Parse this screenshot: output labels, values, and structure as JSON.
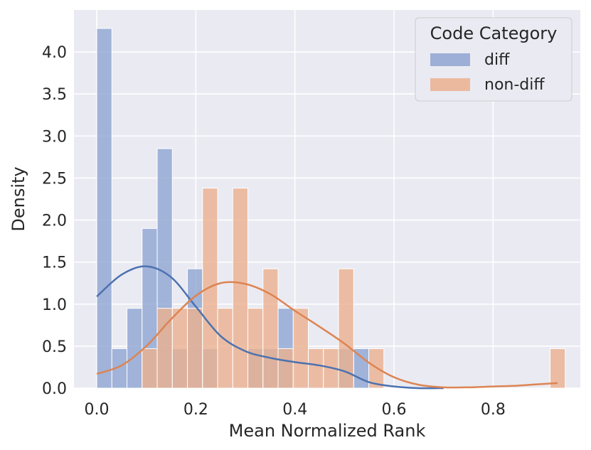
{
  "chart_data": {
    "type": "histogram",
    "title": "",
    "xlabel": "Mean Normalized Rank",
    "ylabel": "Density",
    "xlim": [
      -0.046,
      0.976
    ],
    "ylim": [
      0,
      4.5
    ],
    "x_ticks": [
      {
        "value": 0.0,
        "label": "0.0"
      },
      {
        "value": 0.2,
        "label": "0.2"
      },
      {
        "value": 0.4,
        "label": "0.4"
      },
      {
        "value": 0.6,
        "label": "0.6"
      },
      {
        "value": 0.8,
        "label": "0.8"
      }
    ],
    "y_ticks": [
      {
        "value": 0.0,
        "label": "0.0"
      },
      {
        "value": 0.5,
        "label": "0.5"
      },
      {
        "value": 1.0,
        "label": "1.0"
      },
      {
        "value": 1.5,
        "label": "1.5"
      },
      {
        "value": 2.0,
        "label": "2.0"
      },
      {
        "value": 2.5,
        "label": "2.5"
      },
      {
        "value": 3.0,
        "label": "3.0"
      },
      {
        "value": 3.5,
        "label": "3.5"
      },
      {
        "value": 4.0,
        "label": "4.0"
      }
    ],
    "grid": true,
    "legend": {
      "title": "Code Category",
      "position": "top-right"
    },
    "bin_edges": [
      0.0,
      0.0305,
      0.061,
      0.0915,
      0.122,
      0.1525,
      0.183,
      0.2135,
      0.244,
      0.2745,
      0.305,
      0.3355,
      0.366,
      0.3965,
      0.427,
      0.4575,
      0.488,
      0.5185,
      0.549,
      0.5795,
      0.61,
      0.6405,
      0.671,
      0.7015,
      0.732,
      0.7625,
      0.793,
      0.8235,
      0.854,
      0.8845,
      0.915,
      0.9455
    ],
    "series": [
      {
        "name": "diff",
        "bar_color": "#8fa5d1",
        "line_color": "#4c72b0",
        "densities": [
          4.28,
          0.47,
          0.95,
          1.9,
          2.85,
          0.47,
          1.42,
          0.47,
          0.0,
          0.0,
          0.47,
          0.47,
          0.95,
          0.0,
          0.0,
          0.0,
          0.47,
          0.47,
          0.0,
          0.0,
          0.0,
          0.0,
          0.0,
          0.0,
          0.0,
          0.0,
          0.0,
          0.0,
          0.0,
          0.0,
          0.0
        ],
        "kde_x": [
          0.0,
          0.05,
          0.1,
          0.15,
          0.2,
          0.25,
          0.3,
          0.35,
          0.4,
          0.45,
          0.5,
          0.55,
          0.6,
          0.65,
          0.7
        ],
        "kde_y": [
          1.09,
          1.35,
          1.45,
          1.32,
          0.97,
          0.62,
          0.44,
          0.36,
          0.31,
          0.27,
          0.2,
          0.07,
          0.02,
          0.0,
          0.0
        ]
      },
      {
        "name": "non-diff",
        "bar_color": "#ebb08f",
        "line_color": "#dd8452",
        "densities": [
          0.0,
          0.0,
          0.0,
          0.47,
          0.95,
          0.95,
          0.95,
          2.38,
          0.95,
          2.38,
          0.95,
          1.42,
          0.47,
          0.95,
          0.47,
          0.47,
          1.42,
          0.0,
          0.47,
          0.0,
          0.0,
          0.0,
          0.0,
          0.0,
          0.0,
          0.0,
          0.0,
          0.0,
          0.0,
          0.0,
          0.47
        ],
        "kde_x": [
          0.0,
          0.05,
          0.1,
          0.15,
          0.2,
          0.25,
          0.3,
          0.35,
          0.4,
          0.45,
          0.5,
          0.55,
          0.6,
          0.65,
          0.7,
          0.75,
          0.8,
          0.85,
          0.9,
          0.93
        ],
        "kde_y": [
          0.17,
          0.27,
          0.5,
          0.82,
          1.1,
          1.25,
          1.24,
          1.12,
          0.92,
          0.73,
          0.53,
          0.3,
          0.13,
          0.04,
          0.01,
          0.01,
          0.02,
          0.03,
          0.05,
          0.06
        ]
      }
    ]
  }
}
